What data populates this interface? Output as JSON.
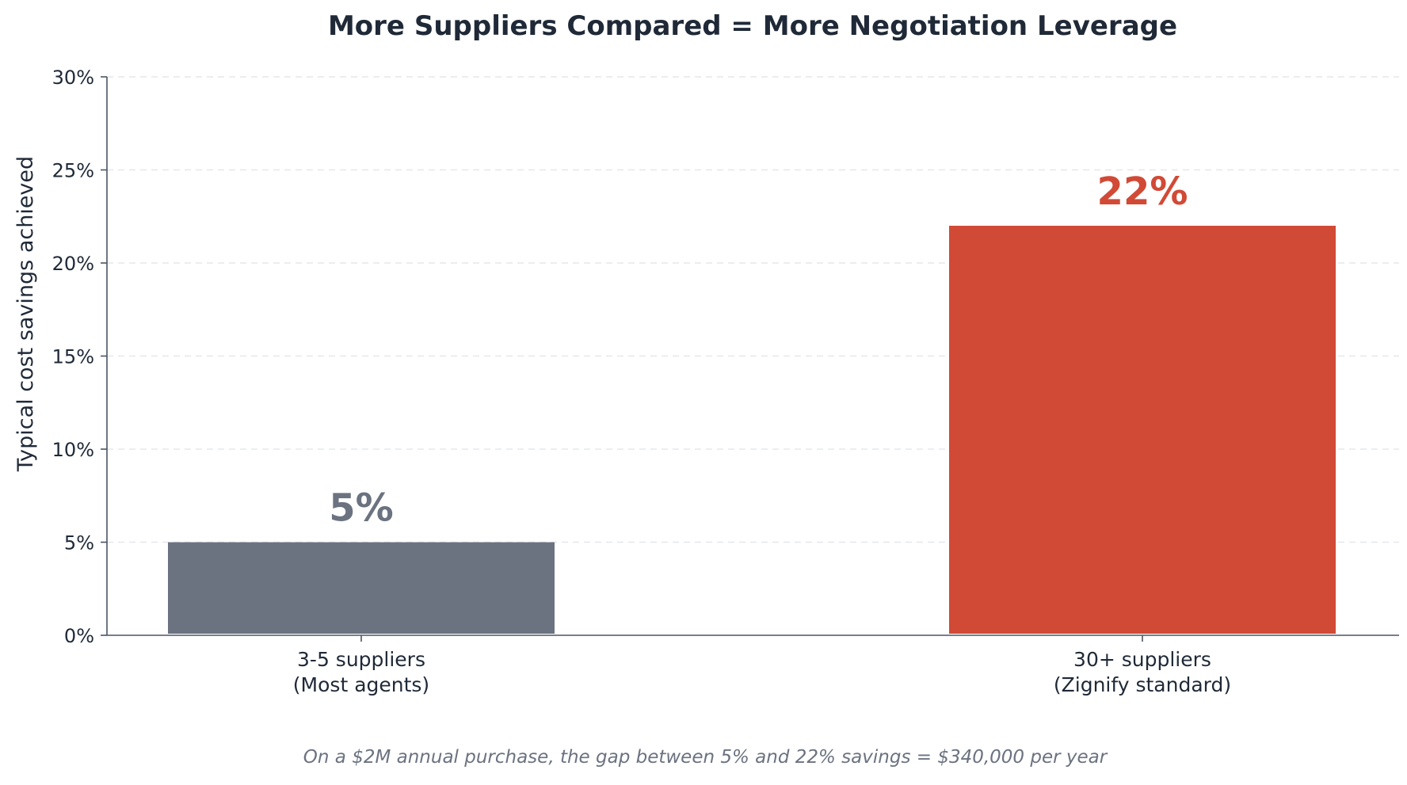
{
  "chart_data": {
    "type": "bar",
    "title": "More Suppliers Compared = More Negotiation Leverage",
    "ylabel": "Typical cost savings achieved",
    "xlabel": "",
    "ylim": [
      0,
      30
    ],
    "yticks": [
      0,
      5,
      10,
      15,
      20,
      25,
      30
    ],
    "ytick_labels": [
      "0%",
      "5%",
      "10%",
      "15%",
      "20%",
      "25%",
      "30%"
    ],
    "grid": "horizontal dashed",
    "categories": [
      [
        "3-5 suppliers",
        "(Most agents)"
      ],
      [
        "30+ suppliers",
        "(Zignify standard)"
      ]
    ],
    "values": [
      5,
      22
    ],
    "value_labels": [
      "5%",
      "22%"
    ],
    "colors": [
      "#6b7280",
      "#d14a36"
    ],
    "footnote": "On a $2M annual purchase, the gap between 5% and 22% savings = $340,000 per year"
  }
}
